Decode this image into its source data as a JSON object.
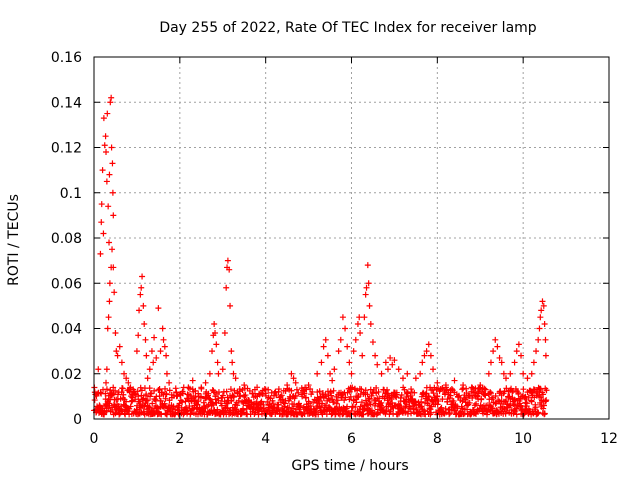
{
  "chart_data": {
    "type": "scatter",
    "title": "Day 255 of 2022, Rate Of TEC Index for receiver lamp",
    "xlabel": "GPS time / hours",
    "ylabel": "ROTI / TECUs",
    "xlim": [
      0,
      12
    ],
    "ylim": [
      0,
      0.16
    ],
    "xticks": [
      0,
      2,
      4,
      6,
      8,
      10,
      12
    ],
    "yticks": [
      0,
      0.02,
      0.04,
      0.06,
      0.08,
      0.1,
      0.12,
      0.14,
      0.16
    ],
    "xtick_labels": [
      "0",
      "2",
      "4",
      "6",
      "8",
      "10",
      "12"
    ],
    "ytick_labels": [
      "0",
      "0.02",
      "0.04",
      "0.06",
      "0.08",
      "0.1",
      "0.12",
      "0.14",
      "0.16"
    ],
    "grid": true,
    "marker": "+",
    "color": "#ff0000",
    "background_band": {
      "x_range": [
        0,
        10.55
      ],
      "typical_y_range": [
        0.002,
        0.014
      ],
      "description": "dense band of low ROTI values across the whole observation period"
    },
    "series": [
      {
        "name": "lamp",
        "points": [
          [
            0.1,
            0.022
          ],
          [
            0.15,
            0.073
          ],
          [
            0.17,
            0.087
          ],
          [
            0.18,
            0.095
          ],
          [
            0.2,
            0.11
          ],
          [
            0.22,
            0.082
          ],
          [
            0.23,
            0.133
          ],
          [
            0.25,
            0.121
          ],
          [
            0.27,
            0.125
          ],
          [
            0.28,
            0.118
          ],
          [
            0.3,
            0.105
          ],
          [
            0.31,
            0.135
          ],
          [
            0.33,
            0.094
          ],
          [
            0.35,
            0.078
          ],
          [
            0.36,
            0.108
          ],
          [
            0.38,
            0.14
          ],
          [
            0.4,
            0.142
          ],
          [
            0.41,
            0.12
          ],
          [
            0.43,
            0.113
          ],
          [
            0.44,
            0.1
          ],
          [
            0.45,
            0.09
          ],
          [
            0.42,
            0.075
          ],
          [
            0.4,
            0.067
          ],
          [
            0.37,
            0.06
          ],
          [
            0.36,
            0.052
          ],
          [
            0.34,
            0.045
          ],
          [
            0.32,
            0.04
          ],
          [
            0.45,
            0.067
          ],
          [
            0.47,
            0.056
          ],
          [
            0.5,
            0.038
          ],
          [
            0.52,
            0.03
          ],
          [
            0.55,
            0.028
          ],
          [
            0.6,
            0.032
          ],
          [
            0.65,
            0.025
          ],
          [
            0.7,
            0.02
          ],
          [
            0.75,
            0.018
          ],
          [
            0.8,
            0.016
          ],
          [
            0.85,
            0.014
          ],
          [
            0.3,
            0.022
          ],
          [
            0.28,
            0.016
          ],
          [
            1.0,
            0.03
          ],
          [
            1.03,
            0.037
          ],
          [
            1.05,
            0.048
          ],
          [
            1.08,
            0.055
          ],
          [
            1.1,
            0.058
          ],
          [
            1.12,
            0.063
          ],
          [
            1.15,
            0.05
          ],
          [
            1.17,
            0.042
          ],
          [
            1.2,
            0.035
          ],
          [
            1.22,
            0.028
          ],
          [
            1.3,
            0.022
          ],
          [
            1.35,
            0.03
          ],
          [
            1.4,
            0.036
          ],
          [
            1.45,
            0.027
          ],
          [
            1.5,
            0.049
          ],
          [
            1.55,
            0.03
          ],
          [
            1.6,
            0.04
          ],
          [
            1.62,
            0.035
          ],
          [
            1.65,
            0.032
          ],
          [
            1.68,
            0.028
          ],
          [
            1.7,
            0.02
          ],
          [
            1.75,
            0.016
          ],
          [
            1.25,
            0.018
          ],
          [
            1.38,
            0.025
          ],
          [
            2.2,
            0.014
          ],
          [
            2.3,
            0.017
          ],
          [
            2.5,
            0.014
          ],
          [
            2.6,
            0.016
          ],
          [
            2.7,
            0.02
          ],
          [
            2.75,
            0.03
          ],
          [
            2.78,
            0.037
          ],
          [
            2.8,
            0.042
          ],
          [
            2.82,
            0.038
          ],
          [
            2.85,
            0.033
          ],
          [
            2.88,
            0.025
          ],
          [
            2.9,
            0.02
          ],
          [
            3.0,
            0.022
          ],
          [
            3.05,
            0.038
          ],
          [
            3.08,
            0.058
          ],
          [
            3.1,
            0.067
          ],
          [
            3.12,
            0.07
          ],
          [
            3.15,
            0.066
          ],
          [
            3.17,
            0.05
          ],
          [
            3.2,
            0.03
          ],
          [
            3.22,
            0.025
          ],
          [
            3.25,
            0.02
          ],
          [
            3.3,
            0.018
          ],
          [
            3.5,
            0.015
          ],
          [
            3.8,
            0.014
          ],
          [
            4.0,
            0.013
          ],
          [
            4.3,
            0.012
          ],
          [
            4.5,
            0.015
          ],
          [
            4.6,
            0.02
          ],
          [
            4.65,
            0.018
          ],
          [
            4.7,
            0.016
          ],
          [
            5.0,
            0.015
          ],
          [
            5.2,
            0.02
          ],
          [
            5.3,
            0.025
          ],
          [
            5.35,
            0.032
          ],
          [
            5.4,
            0.035
          ],
          [
            5.45,
            0.028
          ],
          [
            5.5,
            0.02
          ],
          [
            5.55,
            0.017
          ],
          [
            5.6,
            0.022
          ],
          [
            5.7,
            0.03
          ],
          [
            5.75,
            0.035
          ],
          [
            5.8,
            0.045
          ],
          [
            5.85,
            0.04
          ],
          [
            5.9,
            0.032
          ],
          [
            5.95,
            0.025
          ],
          [
            6.0,
            0.02
          ],
          [
            6.05,
            0.03
          ],
          [
            6.1,
            0.035
          ],
          [
            6.15,
            0.042
          ],
          [
            6.18,
            0.045
          ],
          [
            6.2,
            0.038
          ],
          [
            6.25,
            0.028
          ],
          [
            6.3,
            0.045
          ],
          [
            6.33,
            0.055
          ],
          [
            6.35,
            0.058
          ],
          [
            6.38,
            0.068
          ],
          [
            6.4,
            0.06
          ],
          [
            6.42,
            0.05
          ],
          [
            6.45,
            0.042
          ],
          [
            6.5,
            0.034
          ],
          [
            6.55,
            0.028
          ],
          [
            6.6,
            0.024
          ],
          [
            6.7,
            0.02
          ],
          [
            6.8,
            0.025
          ],
          [
            6.85,
            0.022
          ],
          [
            6.9,
            0.027
          ],
          [
            6.95,
            0.024
          ],
          [
            7.0,
            0.026
          ],
          [
            7.1,
            0.022
          ],
          [
            7.2,
            0.018
          ],
          [
            7.3,
            0.02
          ],
          [
            7.5,
            0.018
          ],
          [
            7.6,
            0.02
          ],
          [
            7.65,
            0.025
          ],
          [
            7.7,
            0.028
          ],
          [
            7.75,
            0.03
          ],
          [
            7.8,
            0.033
          ],
          [
            7.85,
            0.028
          ],
          [
            7.9,
            0.022
          ],
          [
            8.0,
            0.016
          ],
          [
            8.2,
            0.015
          ],
          [
            8.4,
            0.017
          ],
          [
            8.6,
            0.015
          ],
          [
            8.8,
            0.014
          ],
          [
            9.0,
            0.015
          ],
          [
            9.2,
            0.02
          ],
          [
            9.25,
            0.025
          ],
          [
            9.3,
            0.03
          ],
          [
            9.35,
            0.035
          ],
          [
            9.4,
            0.032
          ],
          [
            9.45,
            0.027
          ],
          [
            9.5,
            0.025
          ],
          [
            9.55,
            0.02
          ],
          [
            9.6,
            0.018
          ],
          [
            9.7,
            0.02
          ],
          [
            9.8,
            0.025
          ],
          [
            9.85,
            0.03
          ],
          [
            9.9,
            0.033
          ],
          [
            9.95,
            0.028
          ],
          [
            10.0,
            0.02
          ],
          [
            10.1,
            0.018
          ],
          [
            10.2,
            0.02
          ],
          [
            10.25,
            0.025
          ],
          [
            10.3,
            0.03
          ],
          [
            10.35,
            0.035
          ],
          [
            10.38,
            0.04
          ],
          [
            10.4,
            0.045
          ],
          [
            10.42,
            0.048
          ],
          [
            10.45,
            0.052
          ],
          [
            10.48,
            0.05
          ],
          [
            10.5,
            0.042
          ],
          [
            10.52,
            0.035
          ],
          [
            10.53,
            0.028
          ]
        ]
      }
    ]
  }
}
